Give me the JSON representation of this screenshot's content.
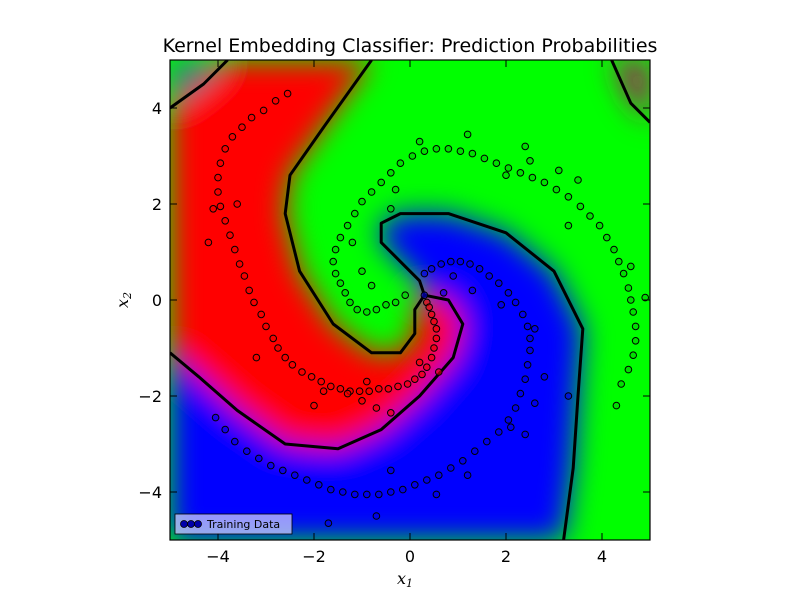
{
  "chart_data": {
    "type": "scatter",
    "title": "Kernel Embedding Classifier: Prediction Probabilities",
    "xlabel": "x",
    "xlabel_sub": "1",
    "ylabel": "x",
    "ylabel_sub": "2",
    "xlim": [
      -5,
      5
    ],
    "ylim": [
      -5,
      5
    ],
    "xticks": [
      -4,
      -2,
      0,
      2,
      4
    ],
    "yticks": [
      -4,
      -2,
      0,
      2,
      4
    ],
    "xtick_labels": [
      "−4",
      "−2",
      "0",
      "2",
      "4"
    ],
    "ytick_labels": [
      "−4",
      "−2",
      "0",
      "2",
      "4"
    ],
    "legend": {
      "label": "Training Data",
      "placement": "lower-left"
    },
    "class_colors": [
      "#ff0000",
      "#00ff00",
      "#0000ff"
    ],
    "background_color_on_tail": "#2a7a8a",
    "point_style": {
      "edge": "#000000"
    },
    "points": [
      [
        0.3,
        0.1
      ],
      [
        0.35,
        -0.05
      ],
      [
        0.4,
        -0.15
      ],
      [
        0.45,
        -0.3
      ],
      [
        0.5,
        -0.45
      ],
      [
        0.55,
        -0.6
      ],
      [
        0.55,
        -0.8
      ],
      [
        0.5,
        -1.0
      ],
      [
        0.45,
        -1.2
      ],
      [
        0.35,
        -1.4
      ],
      [
        0.25,
        -1.55
      ],
      [
        0.1,
        -1.65
      ],
      [
        -0.05,
        -1.75
      ],
      [
        -0.25,
        -1.8
      ],
      [
        -0.45,
        -1.85
      ],
      [
        -0.65,
        -1.85
      ],
      [
        -0.85,
        -1.9
      ],
      [
        -1.05,
        -1.9
      ],
      [
        -1.25,
        -1.9
      ],
      [
        -1.45,
        -1.85
      ],
      [
        -1.65,
        -1.8
      ],
      [
        -1.85,
        -1.7
      ],
      [
        -2.05,
        -1.6
      ],
      [
        -2.25,
        -1.5
      ],
      [
        -2.45,
        -1.35
      ],
      [
        -2.6,
        -1.2
      ],
      [
        -2.75,
        -1.0
      ],
      [
        -2.85,
        -0.8
      ],
      [
        -3.0,
        -0.55
      ],
      [
        -3.1,
        -0.3
      ],
      [
        -3.25,
        -0.05
      ],
      [
        -3.35,
        0.2
      ],
      [
        -3.45,
        0.5
      ],
      [
        -3.55,
        0.75
      ],
      [
        -3.65,
        1.05
      ],
      [
        -3.75,
        1.35
      ],
      [
        -3.85,
        1.65
      ],
      [
        -3.95,
        1.95
      ],
      [
        -4.0,
        2.25
      ],
      [
        -4.0,
        2.55
      ],
      [
        -3.95,
        2.85
      ],
      [
        -3.85,
        3.15
      ],
      [
        -3.7,
        3.4
      ],
      [
        -3.5,
        3.6
      ],
      [
        -3.3,
        3.8
      ],
      [
        -3.05,
        3.95
      ],
      [
        -2.8,
        4.15
      ],
      [
        -2.55,
        4.3
      ],
      [
        -1.3,
        -1.95
      ],
      [
        -1.0,
        -2.1
      ],
      [
        -0.7,
        -2.25
      ],
      [
        -0.4,
        -2.35
      ],
      [
        -1.8,
        -1.9
      ],
      [
        -2.0,
        -2.2
      ],
      [
        -0.9,
        -1.7
      ],
      [
        -3.2,
        -1.2
      ],
      [
        -4.2,
        1.2
      ],
      [
        -4.1,
        1.9
      ],
      [
        -3.6,
        2.0
      ],
      [
        0.6,
        -1.5
      ],
      [
        0.2,
        -1.3
      ],
      [
        -0.1,
        0.1
      ],
      [
        -0.3,
        -0.05
      ],
      [
        -0.5,
        -0.1
      ],
      [
        -0.7,
        -0.2
      ],
      [
        -0.9,
        -0.25
      ],
      [
        -1.1,
        -0.2
      ],
      [
        -1.25,
        -0.05
      ],
      [
        -1.35,
        0.15
      ],
      [
        -1.45,
        0.35
      ],
      [
        -1.55,
        0.55
      ],
      [
        -1.6,
        0.8
      ],
      [
        -1.55,
        1.05
      ],
      [
        -1.45,
        1.3
      ],
      [
        -1.3,
        1.55
      ],
      [
        -1.15,
        1.8
      ],
      [
        -1.0,
        2.05
      ],
      [
        -0.8,
        2.25
      ],
      [
        -0.6,
        2.45
      ],
      [
        -0.4,
        2.65
      ],
      [
        -0.2,
        2.85
      ],
      [
        0.05,
        3.0
      ],
      [
        0.3,
        3.1
      ],
      [
        0.55,
        3.15
      ],
      [
        0.8,
        3.15
      ],
      [
        1.05,
        3.1
      ],
      [
        1.3,
        3.05
      ],
      [
        1.55,
        2.95
      ],
      [
        1.8,
        2.85
      ],
      [
        2.05,
        2.75
      ],
      [
        2.3,
        2.65
      ],
      [
        2.55,
        2.55
      ],
      [
        2.8,
        2.45
      ],
      [
        3.05,
        2.3
      ],
      [
        3.3,
        2.15
      ],
      [
        3.55,
        1.95
      ],
      [
        3.75,
        1.75
      ],
      [
        3.95,
        1.55
      ],
      [
        4.1,
        1.3
      ],
      [
        4.25,
        1.05
      ],
      [
        4.35,
        0.8
      ],
      [
        4.45,
        0.55
      ],
      [
        4.55,
        0.25
      ],
      [
        4.6,
        0.0
      ],
      [
        4.65,
        -0.25
      ],
      [
        4.7,
        -0.55
      ],
      [
        4.7,
        -0.85
      ],
      [
        4.65,
        -1.15
      ],
      [
        4.55,
        -1.45
      ],
      [
        4.4,
        -1.75
      ],
      [
        4.3,
        -2.2
      ],
      [
        4.9,
        0.05
      ],
      [
        3.5,
        2.5
      ],
      [
        3.1,
        2.7
      ],
      [
        2.4,
        3.2
      ],
      [
        1.2,
        3.45
      ],
      [
        0.2,
        3.3
      ],
      [
        -0.3,
        2.3
      ],
      [
        -1.2,
        1.2
      ],
      [
        -1.0,
        0.6
      ],
      [
        -0.8,
        0.3
      ],
      [
        -0.4,
        1.9
      ],
      [
        4.6,
        0.7
      ],
      [
        3.3,
        1.55
      ],
      [
        2.0,
        2.6
      ],
      [
        2.5,
        2.9
      ],
      [
        0.3,
        0.55
      ],
      [
        0.45,
        0.65
      ],
      [
        0.65,
        0.75
      ],
      [
        0.85,
        0.8
      ],
      [
        1.05,
        0.8
      ],
      [
        1.25,
        0.75
      ],
      [
        1.45,
        0.65
      ],
      [
        1.65,
        0.5
      ],
      [
        1.85,
        0.35
      ],
      [
        2.05,
        0.15
      ],
      [
        2.2,
        -0.05
      ],
      [
        2.35,
        -0.3
      ],
      [
        2.45,
        -0.55
      ],
      [
        2.5,
        -0.8
      ],
      [
        2.5,
        -1.05
      ],
      [
        2.45,
        -1.35
      ],
      [
        2.4,
        -1.65
      ],
      [
        2.3,
        -1.95
      ],
      [
        2.2,
        -2.25
      ],
      [
        2.05,
        -2.5
      ],
      [
        1.85,
        -2.75
      ],
      [
        1.6,
        -2.95
      ],
      [
        1.35,
        -3.15
      ],
      [
        1.1,
        -3.35
      ],
      [
        0.85,
        -3.5
      ],
      [
        0.6,
        -3.65
      ],
      [
        0.35,
        -3.75
      ],
      [
        0.1,
        -3.85
      ],
      [
        -0.15,
        -3.95
      ],
      [
        -0.4,
        -4.0
      ],
      [
        -0.65,
        -4.05
      ],
      [
        -0.9,
        -4.05
      ],
      [
        -1.15,
        -4.05
      ],
      [
        -1.4,
        -4.0
      ],
      [
        -1.65,
        -3.95
      ],
      [
        -1.9,
        -3.85
      ],
      [
        -2.15,
        -3.75
      ],
      [
        -2.4,
        -3.65
      ],
      [
        -2.65,
        -3.55
      ],
      [
        -2.9,
        -3.45
      ],
      [
        -3.15,
        -3.3
      ],
      [
        -3.4,
        -3.15
      ],
      [
        -3.65,
        -2.95
      ],
      [
        -3.85,
        -2.7
      ],
      [
        -4.05,
        -2.45
      ],
      [
        -1.7,
        -4.65
      ],
      [
        -0.7,
        -4.5
      ],
      [
        -0.4,
        -3.55
      ],
      [
        0.55,
        -4.05
      ],
      [
        1.2,
        -3.65
      ],
      [
        2.1,
        -2.65
      ],
      [
        2.4,
        -2.8
      ],
      [
        2.6,
        -2.15
      ],
      [
        2.8,
        -1.6
      ],
      [
        1.9,
        -0.1
      ],
      [
        1.3,
        0.2
      ],
      [
        0.9,
        0.5
      ],
      [
        3.3,
        -2.0
      ],
      [
        2.6,
        -0.6
      ],
      [
        0.7,
        0.15
      ]
    ]
  }
}
